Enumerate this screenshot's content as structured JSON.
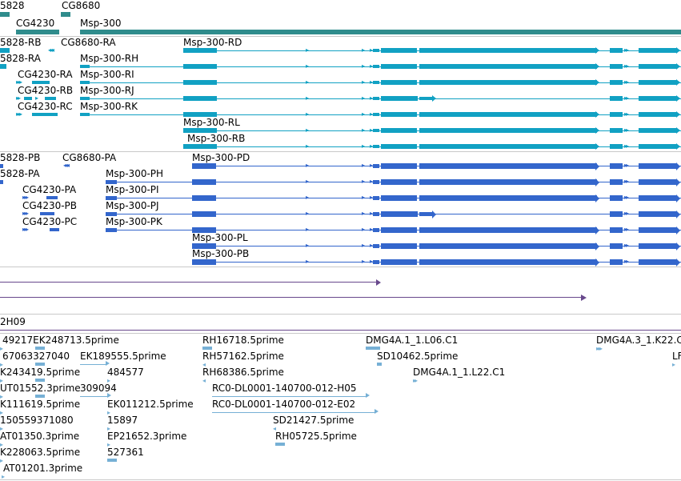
{
  "colors": {
    "gene": "#2f8c8c",
    "rna": "#11a1c3",
    "protein": "#3366cc",
    "span": "#68488c",
    "est": "#76b0d5",
    "separator": "#c9c9c9"
  },
  "genes": [
    {
      "label": "5828"
    },
    {
      "label": "CG8680"
    },
    {
      "label": "CG4230"
    },
    {
      "label": "Msp-300"
    }
  ],
  "transcripts": [
    {
      "label": "5828-RB"
    },
    {
      "label": "CG8680-RA"
    },
    {
      "label": "Msp-300-RD"
    },
    {
      "label": "5828-RA"
    },
    {
      "label": "Msp-300-RH"
    },
    {
      "label": "CG4230-RA"
    },
    {
      "label": "Msp-300-RI"
    },
    {
      "label": "CG4230-RB"
    },
    {
      "label": "Msp-300-RJ"
    },
    {
      "label": "CG4230-RC"
    },
    {
      "label": "Msp-300-RK"
    },
    {
      "label": "Msp-300-RL"
    },
    {
      "label": "Msp-300-RB"
    }
  ],
  "proteins": [
    {
      "label": "5828-PB"
    },
    {
      "label": "CG8680-PA"
    },
    {
      "label": "Msp-300-PD"
    },
    {
      "label": "5828-PA"
    },
    {
      "label": "Msp-300-PH"
    },
    {
      "label": "CG4230-PA"
    },
    {
      "label": "Msp-300-PI"
    },
    {
      "label": "CG4230-PB"
    },
    {
      "label": "Msp-300-PJ"
    },
    {
      "label": "CG4230-PC"
    },
    {
      "label": "Msp-300-PK"
    },
    {
      "label": "Msp-300-PL"
    },
    {
      "label": "Msp-300-PB"
    }
  ],
  "clone": {
    "label": "2H09"
  },
  "ests": [
    {
      "label": "49217EK248713.5prime"
    },
    {
      "label": "RH16718.5prime"
    },
    {
      "label": "DMG4A.1_1.L06.C1"
    },
    {
      "label": "DMG4A.3_1.K22.C"
    },
    {
      "label": "67063327040"
    },
    {
      "label": "EK189555.5prime"
    },
    {
      "label": "RH57162.5prime"
    },
    {
      "label": "SD10462.5prime"
    },
    {
      "label": "LF"
    },
    {
      "label": "K243419.5prime"
    },
    {
      "label": "484577"
    },
    {
      "label": "RH68386.5prime"
    },
    {
      "label": "DMG4A.1_1.L22.C1"
    },
    {
      "label": "UT01552.3prime"
    },
    {
      "label": "309094"
    },
    {
      "label": "RC0-DL0001-140700-012-H05"
    },
    {
      "label": "K111619.5prime"
    },
    {
      "label": "EK011212.5prime"
    },
    {
      "label": "RC0-DL0001-140700-012-E02"
    },
    {
      "label": "150559371080"
    },
    {
      "label": "15897"
    },
    {
      "label": "SD21427.5prime"
    },
    {
      "label": "AT01350.3prime"
    },
    {
      "label": "EP21652.3prime"
    },
    {
      "label": "RH05725.5prime"
    },
    {
      "label": "K228063.5prime"
    },
    {
      "label": "527361"
    },
    {
      "label": "AT01201.3prime"
    }
  ]
}
